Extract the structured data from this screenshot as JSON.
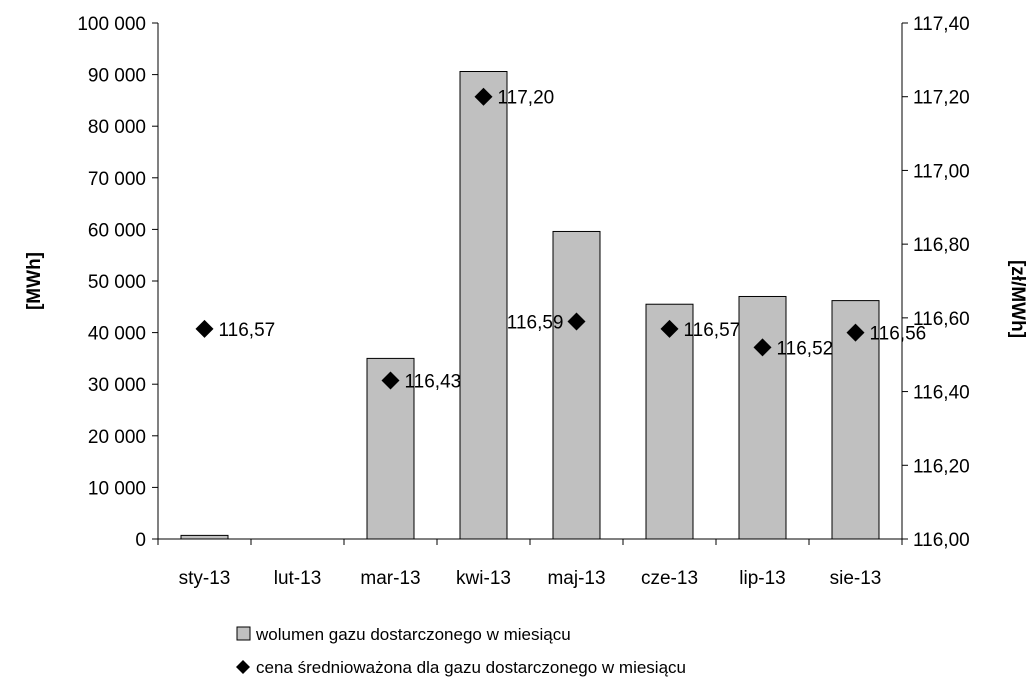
{
  "chart_data": {
    "type": "bar",
    "categories": [
      "sty-13",
      "lut-13",
      "mar-13",
      "kwi-13",
      "maj-13",
      "cze-13",
      "lip-13",
      "sie-13"
    ],
    "ylabel": "[MWh]",
    "y2label": "[zł/MWh]",
    "ylim": [
      0,
      100000
    ],
    "y2lim": [
      116.0,
      117.4
    ],
    "y_ticks": [
      "0",
      "10 000",
      "20 000",
      "30 000",
      "40 000",
      "50 000",
      "60 000",
      "70 000",
      "80 000",
      "90 000",
      "100 000"
    ],
    "y2_ticks": [
      "116,00",
      "116,20",
      "116,40",
      "116,60",
      "116,80",
      "117,00",
      "117,20",
      "117,40"
    ],
    "grid": false,
    "legend_position": "bottom",
    "series": [
      {
        "name": "wolumen gazu dostarczonego w miesiącu",
        "type": "bar",
        "axis": "left",
        "color": "#c0c0c0",
        "values": [
          700,
          0,
          35000,
          90600,
          59600,
          45500,
          47000,
          46200
        ]
      },
      {
        "name": "cena średnioważona dla gazu dostarczonego w miesiącu",
        "type": "scatter",
        "axis": "right",
        "marker": "diamond",
        "color": "#000000",
        "values": [
          116.57,
          null,
          116.43,
          117.2,
          116.59,
          116.57,
          116.52,
          116.56
        ],
        "labels": [
          "116,57",
          "",
          "116,43",
          "117,20",
          "116,59",
          "116,57",
          "116,52",
          "116,56"
        ]
      }
    ]
  }
}
